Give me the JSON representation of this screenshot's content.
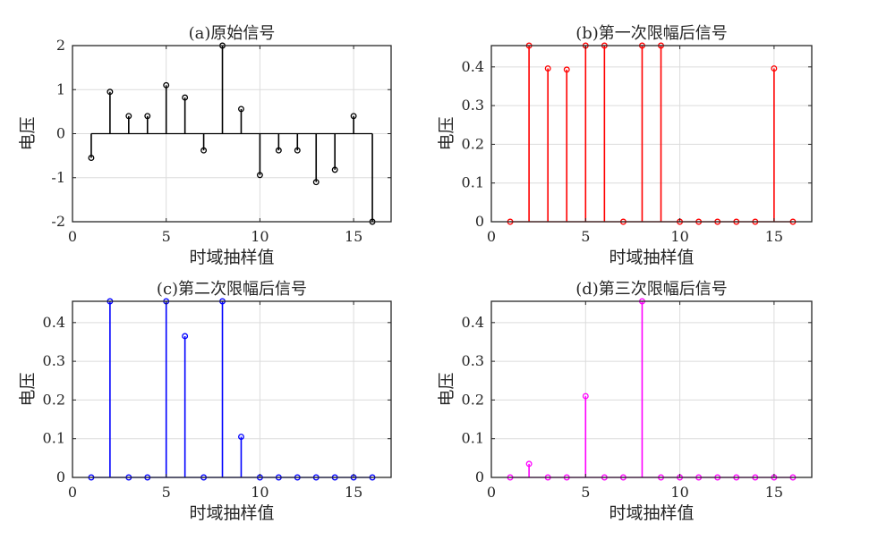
{
  "chart_data": [
    {
      "type": "stem",
      "title": "(a)原始信号",
      "xlabel": "时域抽样值",
      "ylabel": "电压",
      "xlim": [
        0,
        17
      ],
      "ylim": [
        -2,
        2
      ],
      "xticks": [
        0,
        5,
        10,
        15
      ],
      "yticks": [
        -2,
        -1,
        0,
        1,
        2
      ],
      "ytick_labels": [
        "-2",
        "-1",
        "0",
        "1",
        "2"
      ],
      "grid": true,
      "color": "#000000",
      "x": [
        1,
        2,
        3,
        4,
        5,
        6,
        7,
        8,
        9,
        10,
        11,
        12,
        13,
        14,
        15,
        16
      ],
      "y": [
        -0.55,
        0.95,
        0.4,
        0.4,
        1.1,
        0.82,
        -0.38,
        2.0,
        0.56,
        -0.94,
        -0.38,
        -0.38,
        -1.1,
        -0.82,
        0.4,
        -2.0
      ]
    },
    {
      "type": "stem",
      "title": "(b)第一次限幅后信号",
      "xlabel": "时域抽样值",
      "ylabel": "电压",
      "xlim": [
        0,
        17
      ],
      "ylim": [
        0,
        0.455
      ],
      "xticks": [
        0,
        5,
        10,
        15
      ],
      "yticks": [
        0,
        0.1,
        0.2,
        0.3,
        0.4
      ],
      "ytick_labels": [
        "0",
        "0.1",
        "0.2",
        "0.3",
        "0.4"
      ],
      "grid": true,
      "color": "#ff0000",
      "x": [
        1,
        2,
        3,
        4,
        5,
        6,
        7,
        8,
        9,
        10,
        11,
        12,
        13,
        14,
        15,
        16
      ],
      "y": [
        0,
        0.455,
        0.396,
        0.393,
        0.455,
        0.455,
        0,
        0.455,
        0.455,
        0,
        0,
        0,
        0,
        0,
        0.396,
        0
      ]
    },
    {
      "type": "stem",
      "title": "(c)第二次限幅后信号",
      "xlabel": "时域抽样值",
      "ylabel": "电压",
      "xlim": [
        0,
        17
      ],
      "ylim": [
        0,
        0.455
      ],
      "xticks": [
        0,
        5,
        10,
        15
      ],
      "yticks": [
        0,
        0.1,
        0.2,
        0.3,
        0.4
      ],
      "ytick_labels": [
        "0",
        "0.1",
        "0.2",
        "0.3",
        "0.4"
      ],
      "grid": true,
      "color": "#0000ff",
      "x": [
        1,
        2,
        3,
        4,
        5,
        6,
        7,
        8,
        9,
        10,
        11,
        12,
        13,
        14,
        15,
        16
      ],
      "y": [
        0,
        0.455,
        0,
        0,
        0.455,
        0.365,
        0,
        0.455,
        0.105,
        0,
        0,
        0,
        0,
        0,
        0,
        0
      ]
    },
    {
      "type": "stem",
      "title": "(d)第三次限幅后信号",
      "xlabel": "时域抽样值",
      "ylabel": "电压",
      "xlim": [
        0,
        17
      ],
      "ylim": [
        0,
        0.455
      ],
      "xticks": [
        0,
        5,
        10,
        15
      ],
      "yticks": [
        0,
        0.1,
        0.2,
        0.3,
        0.4
      ],
      "ytick_labels": [
        "0",
        "0.1",
        "0.2",
        "0.3",
        "0.4"
      ],
      "grid": true,
      "color": "#ff00ff",
      "x": [
        1,
        2,
        3,
        4,
        5,
        6,
        7,
        8,
        9,
        10,
        11,
        12,
        13,
        14,
        15,
        16
      ],
      "y": [
        0,
        0.035,
        0,
        0,
        0.21,
        0,
        0,
        0.455,
        0,
        0,
        0,
        0,
        0,
        0,
        0,
        0
      ]
    }
  ]
}
